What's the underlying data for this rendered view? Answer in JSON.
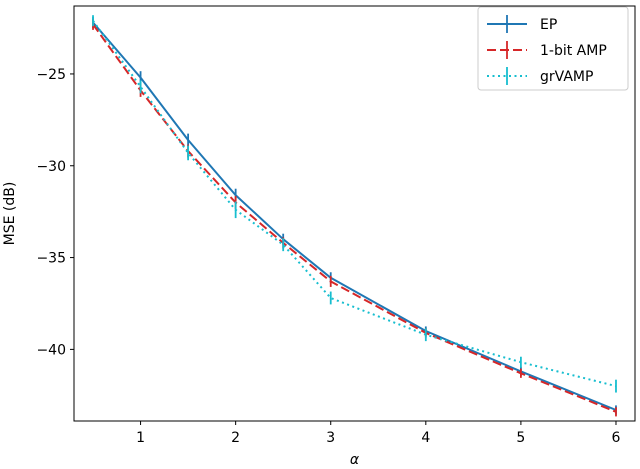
{
  "chart_data": {
    "type": "line",
    "xlabel": "α",
    "ylabel": "MSE (dB)",
    "xlim": [
      0.3,
      6.2
    ],
    "ylim": [
      -43.9,
      -21.3
    ],
    "xticks": [
      1,
      2,
      3,
      4,
      5,
      6
    ],
    "yticks": [
      -25,
      -30,
      -35,
      -40
    ],
    "xtick_labels": [
      "1",
      "2",
      "3",
      "4",
      "5",
      "6"
    ],
    "ytick_labels": [
      "−25",
      "−30",
      "−35",
      "−40"
    ],
    "grid": false,
    "legend_position": "top-right",
    "x": [
      0.5,
      1,
      1.5,
      2,
      2.5,
      3,
      4,
      5,
      6
    ],
    "series": [
      {
        "name": "EP",
        "color": "#1f77b4",
        "style": "solid",
        "values": [
          -22.2,
          -25.2,
          -28.6,
          -31.6,
          -34.0,
          -36.1,
          -39.0,
          -41.2,
          -43.3
        ],
        "errors": [
          0.3,
          0.35,
          0.35,
          0.35,
          0.3,
          0.3,
          0.25,
          0.25,
          0.25
        ]
      },
      {
        "name": "1-bit AMP",
        "color": "#d62728",
        "style": "dashed",
        "values": [
          -22.3,
          -25.9,
          -29.2,
          -32.0,
          -34.2,
          -36.3,
          -39.1,
          -41.3,
          -43.4
        ],
        "errors": [
          0.3,
          0.35,
          0.35,
          0.35,
          0.3,
          0.3,
          0.25,
          0.25,
          0.25
        ]
      },
      {
        "name": "grVAMP",
        "color": "#17becf",
        "style": "dotted",
        "values": [
          -22.1,
          -25.7,
          -29.3,
          -32.4,
          -34.3,
          -37.2,
          -39.2,
          -40.7,
          -42.0
        ],
        "errors": [
          0.3,
          0.35,
          0.4,
          0.45,
          0.35,
          0.35,
          0.35,
          0.3,
          0.35
        ]
      }
    ]
  }
}
